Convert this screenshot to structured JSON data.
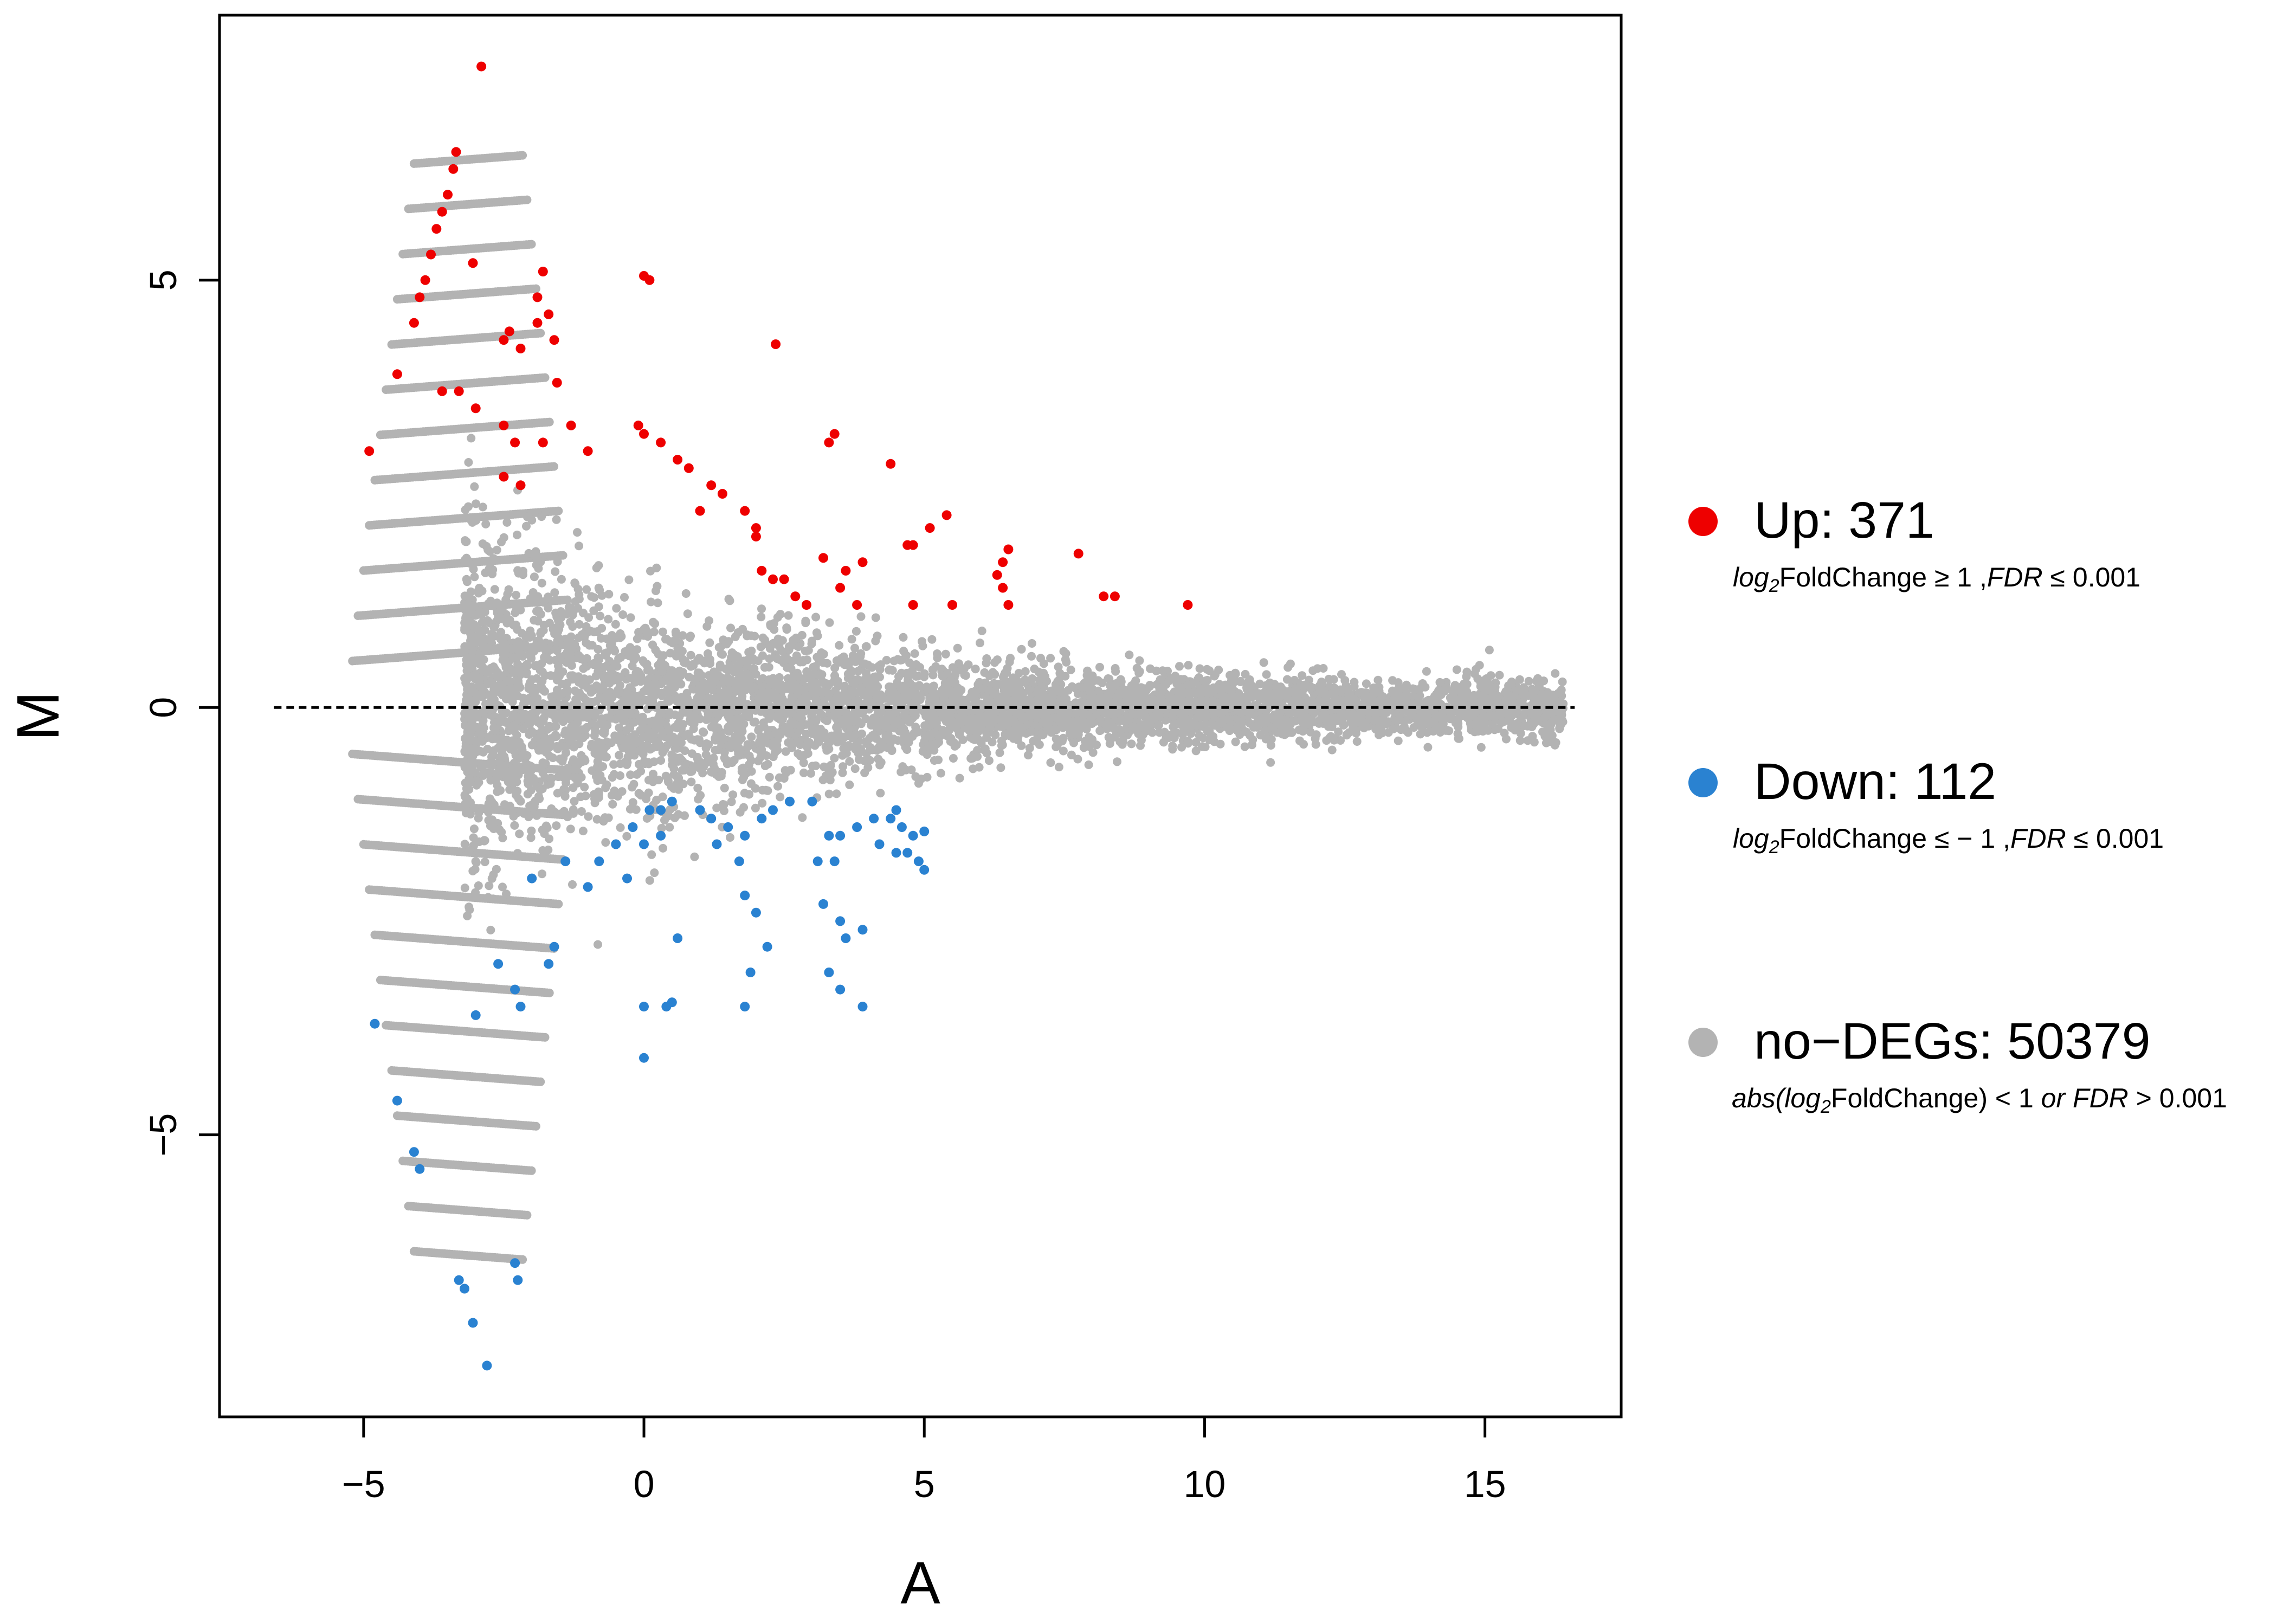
{
  "chart_data": {
    "type": "scatter",
    "title": "",
    "xlabel": "A",
    "ylabel": "M",
    "xlim": [
      -7.57,
      17.43
    ],
    "ylim": [
      -8.3,
      8.1
    ],
    "xticks": [
      -5,
      0,
      5,
      10,
      15
    ],
    "xtick_labels": [
      "−5",
      "0",
      "5",
      "10",
      "15"
    ],
    "yticks": [
      -5,
      0,
      5
    ],
    "ytick_labels": [
      "−5",
      "0",
      "5"
    ],
    "reference_line": {
      "y": 0,
      "x_range": [
        -6.6,
        16.6
      ],
      "style": "dashed"
    },
    "grid": false,
    "legend_position": "right",
    "colors": {
      "up": "#ee0000",
      "down": "#2a82d1",
      "nodeg": "#b3b3b3"
    },
    "series": [
      {
        "name": "Up",
        "count": 371,
        "label": "Up: 371",
        "condition": {
          "fn": "log",
          "fn_sub": "2",
          "mid": "FoldChange ≥ 1 ,",
          "stat": "FDR",
          "tail": " ≤ 0.001"
        },
        "points": [
          [
            -2.9,
            7.5
          ],
          [
            -3.05,
            5.2
          ],
          [
            -3.35,
            6.5
          ],
          [
            -3.4,
            6.3
          ],
          [
            -3.5,
            6.0
          ],
          [
            -3.6,
            5.8
          ],
          [
            -3.7,
            5.6
          ],
          [
            -3.8,
            5.3
          ],
          [
            -3.9,
            5.0
          ],
          [
            -4.0,
            4.8
          ],
          [
            -4.1,
            4.5
          ],
          [
            -4.4,
            3.9
          ],
          [
            -3.6,
            3.7
          ],
          [
            -3.3,
            3.7
          ],
          [
            -3.0,
            3.5
          ],
          [
            -4.9,
            3.0
          ],
          [
            -2.4,
            4.4
          ],
          [
            -2.5,
            4.3
          ],
          [
            -2.2,
            4.2
          ],
          [
            -1.8,
            5.1
          ],
          [
            -1.9,
            4.8
          ],
          [
            -1.7,
            4.6
          ],
          [
            -1.9,
            4.5
          ],
          [
            -1.6,
            4.3
          ],
          [
            -1.55,
            3.8
          ],
          [
            0.0,
            5.05
          ],
          [
            0.1,
            5.0
          ],
          [
            2.35,
            4.25
          ],
          [
            3.4,
            3.2
          ],
          [
            3.3,
            3.1
          ],
          [
            4.4,
            2.85
          ],
          [
            5.4,
            2.25
          ],
          [
            5.1,
            2.1
          ],
          [
            6.5,
            1.85
          ],
          [
            6.4,
            1.7
          ],
          [
            6.3,
            1.55
          ],
          [
            6.4,
            1.4
          ],
          [
            6.5,
            1.2
          ],
          [
            7.75,
            1.8
          ],
          [
            8.2,
            1.3
          ],
          [
            8.4,
            1.3
          ],
          [
            9.7,
            1.2
          ],
          [
            4.7,
            1.9
          ],
          [
            4.8,
            1.9
          ],
          [
            3.2,
            1.75
          ],
          [
            3.6,
            1.6
          ],
          [
            3.9,
            1.7
          ],
          [
            3.5,
            1.4
          ],
          [
            3.8,
            1.2
          ],
          [
            4.8,
            1.2
          ],
          [
            5.5,
            1.2
          ],
          [
            2.1,
            1.6
          ],
          [
            2.3,
            1.5
          ],
          [
            2.5,
            1.5
          ],
          [
            2.7,
            1.3
          ],
          [
            2.9,
            1.2
          ],
          [
            2.0,
            2.1
          ],
          [
            -2.5,
            3.3
          ],
          [
            -2.3,
            3.1
          ],
          [
            -2.2,
            2.6
          ],
          [
            -2.5,
            2.7
          ],
          [
            -1.8,
            3.1
          ],
          [
            -1.3,
            3.3
          ],
          [
            -1.0,
            3.0
          ],
          [
            -0.1,
            3.3
          ],
          [
            0.0,
            3.2
          ],
          [
            0.3,
            3.1
          ],
          [
            0.6,
            2.9
          ],
          [
            0.8,
            2.8
          ],
          [
            1.2,
            2.6
          ],
          [
            1.0,
            2.3
          ],
          [
            1.4,
            2.5
          ],
          [
            1.8,
            2.3
          ],
          [
            2.0,
            2.0
          ]
        ]
      },
      {
        "name": "Down",
        "count": 112,
        "label": "Down: 112",
        "condition": {
          "fn": "log",
          "fn_sub": "2",
          "mid": "FoldChange ≤ − 1 ,",
          "stat": "FDR",
          "tail": " ≤ 0.001"
        },
        "points": [
          [
            -4.8,
            -3.7
          ],
          [
            -4.4,
            -4.6
          ],
          [
            -4.1,
            -5.2
          ],
          [
            -4.0,
            -5.4
          ],
          [
            -3.3,
            -6.7
          ],
          [
            -3.2,
            -6.8
          ],
          [
            -3.05,
            -7.2
          ],
          [
            -2.8,
            -7.7
          ],
          [
            -2.3,
            -6.5
          ],
          [
            -2.25,
            -6.7
          ],
          [
            -3.0,
            -3.6
          ],
          [
            -2.6,
            -3.0
          ],
          [
            -2.3,
            -3.3
          ],
          [
            -2.2,
            -3.5
          ],
          [
            -1.7,
            -3.0
          ],
          [
            -1.6,
            -2.8
          ],
          [
            -2.0,
            -2.0
          ],
          [
            -1.4,
            -1.8
          ],
          [
            -1.0,
            -2.1
          ],
          [
            -0.8,
            -1.8
          ],
          [
            -0.5,
            -1.6
          ],
          [
            -0.2,
            -1.4
          ],
          [
            0.1,
            -1.2
          ],
          [
            0.3,
            -1.2
          ],
          [
            0.5,
            -1.1
          ],
          [
            0.3,
            -1.5
          ],
          [
            0.0,
            -1.6
          ],
          [
            -0.3,
            -2.0
          ],
          [
            0.6,
            -2.7
          ],
          [
            0.0,
            -3.5
          ],
          [
            0.5,
            -3.45
          ],
          [
            0.4,
            -3.5
          ],
          [
            0.0,
            -4.1
          ],
          [
            1.0,
            -1.2
          ],
          [
            1.2,
            -1.3
          ],
          [
            1.5,
            -1.4
          ],
          [
            1.8,
            -1.5
          ],
          [
            2.1,
            -1.3
          ],
          [
            2.3,
            -1.2
          ],
          [
            2.6,
            -1.1
          ],
          [
            1.3,
            -1.6
          ],
          [
            1.7,
            -1.8
          ],
          [
            1.8,
            -2.2
          ],
          [
            2.0,
            -2.4
          ],
          [
            2.2,
            -2.8
          ],
          [
            1.9,
            -3.1
          ],
          [
            1.8,
            -3.5
          ],
          [
            3.0,
            -1.1
          ],
          [
            3.3,
            -1.5
          ],
          [
            3.5,
            -1.5
          ],
          [
            3.8,
            -1.4
          ],
          [
            3.4,
            -1.8
          ],
          [
            3.1,
            -1.8
          ],
          [
            3.2,
            -2.3
          ],
          [
            3.5,
            -2.5
          ],
          [
            3.6,
            -2.7
          ],
          [
            3.9,
            -2.6
          ],
          [
            3.3,
            -3.1
          ],
          [
            3.5,
            -3.3
          ],
          [
            3.9,
            -3.5
          ],
          [
            4.1,
            -1.3
          ],
          [
            4.4,
            -1.3
          ],
          [
            4.5,
            -1.2
          ],
          [
            4.6,
            -1.4
          ],
          [
            4.8,
            -1.5
          ],
          [
            5.0,
            -1.45
          ],
          [
            4.2,
            -1.6
          ],
          [
            4.5,
            -1.7
          ],
          [
            4.7,
            -1.7
          ],
          [
            4.9,
            -1.8
          ],
          [
            5.0,
            -1.9
          ]
        ]
      },
      {
        "name": "no-DEGs",
        "count": 50379,
        "label": "no−DEGs: 50379",
        "condition": {
          "pre": "abs(",
          "fn": "log",
          "fn_sub": "2",
          "mid": "FoldChange) < 1  ",
          "stat": "or FDR",
          "tail": " > 0.001"
        },
        "note": "Dense grey cloud: M spread narrows from about ±3.5 near A=−3 to about ±0.3 near A=16; discrete fanning streaks at low A (Poisson count effect)."
      }
    ]
  }
}
